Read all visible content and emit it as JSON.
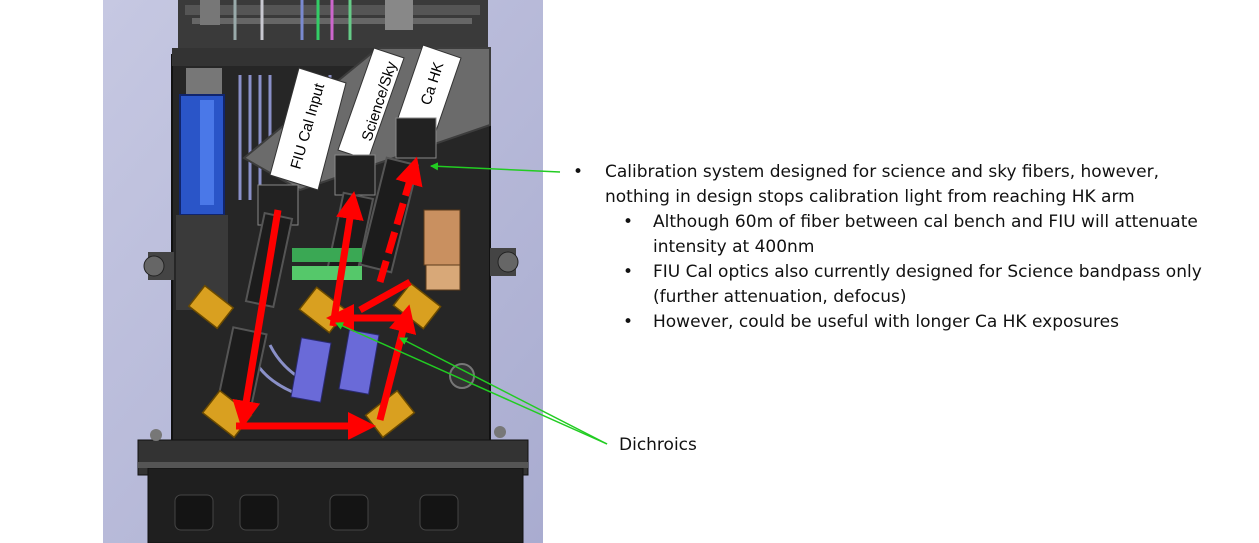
{
  "diagram": {
    "fiber_labels": [
      "FIU Cal Input",
      "Science/Sky",
      "Ca HK"
    ],
    "callout_label": "Dichroics",
    "colors": {
      "background_panel": "#b7b9d8",
      "enclosure": "#2c2c2c",
      "red_path": "#ff0000",
      "green_leader": "#22cc22",
      "dichroic_mount": "#d9a020",
      "camera_blue": "#2a55c8"
    }
  },
  "notes": {
    "bullet_main": "Calibration system designed for science and sky fibers, however, nothing in design stops calibration light from reaching HK arm",
    "sub_bullets": [
      "Although 60m of fiber between cal bench and FIU will attenuate intensity at 400nm",
      "FIU Cal optics also currently designed for Science bandpass only (further attenuation, defocus)",
      "However, could be useful with longer Ca HK exposures"
    ],
    "bullet_glyph": "•"
  }
}
